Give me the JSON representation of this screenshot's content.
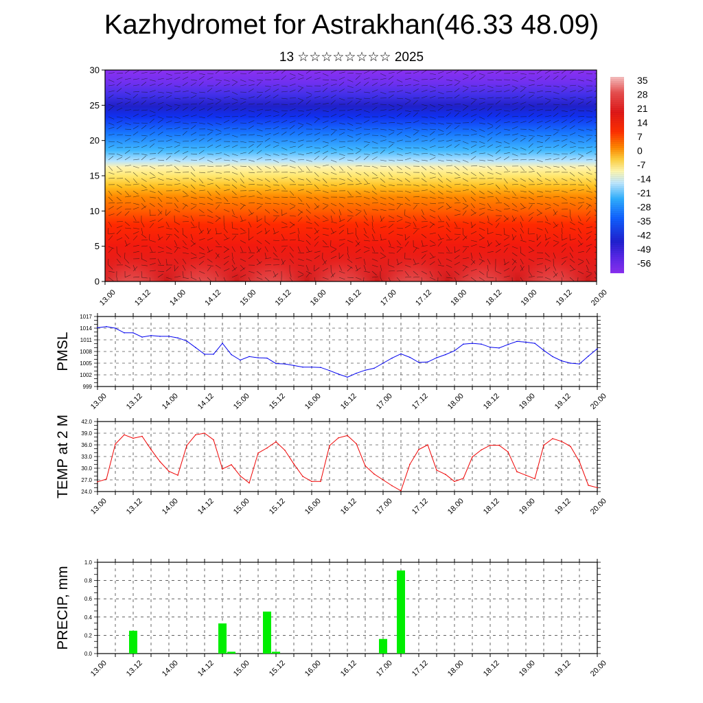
{
  "header": {
    "title": "Kazhydromet for Astrakhan(46.33 48.09)",
    "subtitle": "13 ☆☆☆☆☆☆☆☆ 2025"
  },
  "time_ticks": [
    "13.00",
    "13.12",
    "14.00",
    "14.12",
    "15.00",
    "15.12",
    "16.00",
    "16.12",
    "17.00",
    "17.12",
    "18.00",
    "18.12",
    "19.00",
    "19.12",
    "20.00"
  ],
  "chart_data": [
    {
      "type": "heatmap",
      "name": "cross-section",
      "x_ticks": [
        "13.00",
        "13.12",
        "14.00",
        "14.12",
        "15.00",
        "15.12",
        "16.00",
        "16.12",
        "17.00",
        "17.12",
        "18.00",
        "18.12",
        "19.00",
        "19.12",
        "20.00"
      ],
      "y_ticks": [
        "0",
        "5",
        "10",
        "15",
        "20",
        "25",
        "30"
      ],
      "ylim": [
        0,
        30
      ],
      "colorbar": {
        "labels": [
          "35",
          "28",
          "21",
          "14",
          "7",
          "0",
          "-7",
          "-14",
          "-21",
          "-28",
          "-35",
          "-42",
          "-49",
          "-56"
        ],
        "range": [
          -60,
          38
        ]
      },
      "wind_vectors": true
    },
    {
      "type": "line",
      "ylabel": "PMSL",
      "ylim": [
        999,
        1017
      ],
      "y_ticks": [
        "1017",
        "1014",
        "1011",
        "1008",
        "1005",
        "1002",
        "999"
      ],
      "x_ticks": [
        "13.00",
        "13.12",
        "14.00",
        "14.12",
        "15.00",
        "15.12",
        "16.00",
        "16.12",
        "17.00",
        "17.12",
        "18.00",
        "18.12",
        "19.00",
        "19.12",
        "20.00"
      ],
      "color": "#0000ee",
      "x": [
        0,
        3,
        6,
        9,
        12,
        15,
        18,
        21,
        24,
        27,
        30,
        33,
        36,
        39,
        42,
        45,
        48,
        51,
        54,
        57,
        60,
        63,
        66,
        69,
        72,
        75,
        78,
        81,
        84,
        87,
        90,
        93,
        96,
        99,
        102,
        105,
        108,
        111,
        114,
        117,
        120,
        123,
        126,
        129,
        132,
        135,
        138,
        141,
        144,
        147,
        150,
        153,
        156,
        159,
        162,
        165,
        168
      ],
      "values": [
        1014.1,
        1014.4,
        1014.0,
        1012.8,
        1012.8,
        1011.7,
        1012.1,
        1011.9,
        1011.9,
        1011.5,
        1010.7,
        1009.0,
        1007.3,
        1007.3,
        1010.1,
        1007.2,
        1005.8,
        1006.7,
        1006.4,
        1006.3,
        1004.9,
        1004.8,
        1004.4,
        1004.0,
        1004.0,
        1003.9,
        1003.1,
        1002.2,
        1001.4,
        1002.4,
        1003.2,
        1003.7,
        1005.0,
        1006.3,
        1007.4,
        1006.5,
        1005.2,
        1005.3,
        1006.4,
        1007.2,
        1008.2,
        1009.9,
        1010.1,
        1009.9,
        1009.1,
        1008.9,
        1009.8,
        1010.6,
        1010.4,
        1010.1,
        1008.3,
        1006.7,
        1005.6,
        1005.0,
        1004.8,
        1006.8,
        1008.7
      ]
    },
    {
      "type": "line",
      "ylabel": "TEMP at 2 M",
      "ylim": [
        24.0,
        42.0
      ],
      "y_ticks": [
        "42.0",
        "39.0",
        "36.0",
        "33.0",
        "30.0",
        "27.0",
        "24.0"
      ],
      "x_ticks": [
        "13.00",
        "13.12",
        "14.00",
        "14.12",
        "15.00",
        "15.12",
        "16.00",
        "16.12",
        "17.00",
        "17.12",
        "18.00",
        "18.12",
        "19.00",
        "19.12",
        "20.00"
      ],
      "color": "#ee0000",
      "x": [
        0,
        3,
        6,
        9,
        12,
        15,
        18,
        21,
        24,
        27,
        30,
        33,
        36,
        39,
        42,
        45,
        48,
        51,
        54,
        57,
        60,
        63,
        66,
        69,
        72,
        75,
        78,
        81,
        84,
        87,
        90,
        93,
        96,
        99,
        102,
        105,
        108,
        111,
        114,
        117,
        120,
        123,
        126,
        129,
        132,
        135,
        138,
        141,
        144,
        147,
        150,
        153,
        156,
        159,
        162,
        165,
        168
      ],
      "values": [
        26.5,
        27.2,
        36.2,
        38.6,
        37.7,
        38.2,
        34.8,
        31.7,
        29.2,
        28.2,
        35.8,
        38.6,
        39.0,
        37.3,
        29.8,
        30.9,
        28.0,
        26.2,
        33.9,
        35.2,
        36.8,
        34.6,
        31.1,
        27.9,
        26.6,
        26.6,
        35.8,
        37.8,
        38.4,
        36.3,
        30.6,
        28.5,
        27.0,
        25.5,
        24.2,
        31.0,
        34.8,
        36.0,
        29.5,
        28.4,
        26.6,
        27.4,
        32.9,
        34.7,
        35.9,
        35.9,
        34.2,
        29.1,
        28.2,
        27.3,
        35.9,
        37.6,
        36.9,
        35.6,
        31.7,
        25.6,
        25.0
      ]
    },
    {
      "type": "bar",
      "ylabel": "PRECIP, mm",
      "ylim": [
        0.0,
        1.0
      ],
      "y_ticks": [
        "1.0",
        "0.8",
        "0.6",
        "0.4",
        "0.2",
        "0.0"
      ],
      "x_ticks": [
        "13.00",
        "13.12",
        "14.00",
        "14.12",
        "15.00",
        "15.12",
        "16.00",
        "16.12",
        "17.00",
        "17.12",
        "18.00",
        "18.12",
        "19.00",
        "19.12",
        "20.00"
      ],
      "color": "#00ee00",
      "x": [
        12,
        42,
        45,
        57,
        60,
        96,
        102
      ],
      "values": [
        0.25,
        0.33,
        0.02,
        0.46,
        0.02,
        0.16,
        0.91
      ]
    }
  ]
}
